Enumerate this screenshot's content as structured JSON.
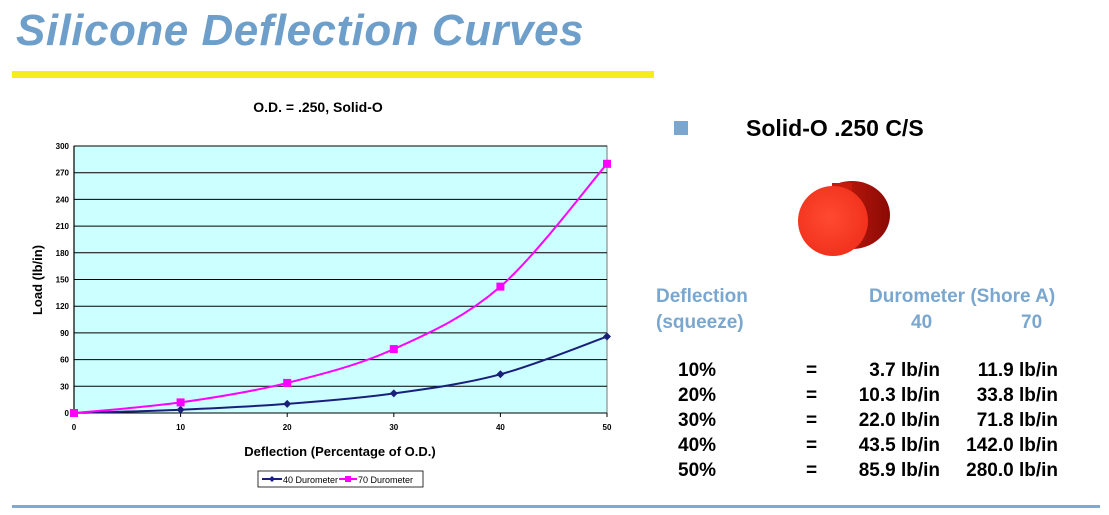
{
  "page": {
    "title": "Silicone Deflection Curves"
  },
  "chart_data": {
    "type": "line",
    "title": "O.D. = .250, Solid-O",
    "xlabel": "Deflection (Percentage of O.D.)",
    "ylabel": "Load (lb/in)",
    "x": [
      0,
      10,
      20,
      30,
      40,
      50
    ],
    "xlim": [
      0,
      50
    ],
    "ylim": [
      0,
      300
    ],
    "xticks": [
      0,
      10,
      20,
      30,
      40,
      50
    ],
    "yticks": [
      0,
      30,
      60,
      90,
      120,
      150,
      180,
      210,
      240,
      270,
      300
    ],
    "grid": true,
    "legend_position": "bottom",
    "series": [
      {
        "name": "40 Durometer",
        "values": [
          0,
          3.7,
          10.3,
          22.0,
          43.5,
          85.9
        ],
        "color": "#1a1f7a",
        "marker": "diamond"
      },
      {
        "name": "70 Durometer",
        "values": [
          0,
          11.9,
          33.8,
          71.8,
          142.0,
          280.0
        ],
        "color": "#ff00ff",
        "marker": "square"
      }
    ],
    "plot_background": "#ccffff"
  },
  "panel": {
    "subtitle": "Solid-O .250 C/S",
    "deflection_header": "Deflection",
    "squeeze_header": "(squeeze)",
    "durometer_header": "Durometer (Shore A)",
    "col_40": "40",
    "col_70": "70",
    "rows": [
      {
        "pct": "10%",
        "eq": "=",
        "v40": "3.7 lb/in",
        "v70": "11.9 lb/in"
      },
      {
        "pct": "20%",
        "eq": "=",
        "v40": "10.3 lb/in",
        "v70": "33.8 lb/in"
      },
      {
        "pct": "30%",
        "eq": "=",
        "v40": "22.0 lb/in",
        "v70": "71.8 lb/in"
      },
      {
        "pct": "40%",
        "eq": "=",
        "v40": "43.5 lb/in",
        "v70": "142.0 lb/in"
      },
      {
        "pct": "50%",
        "eq": "=",
        "v40": "85.9 lb/in",
        "v70": "280.0 lb/in"
      }
    ]
  }
}
